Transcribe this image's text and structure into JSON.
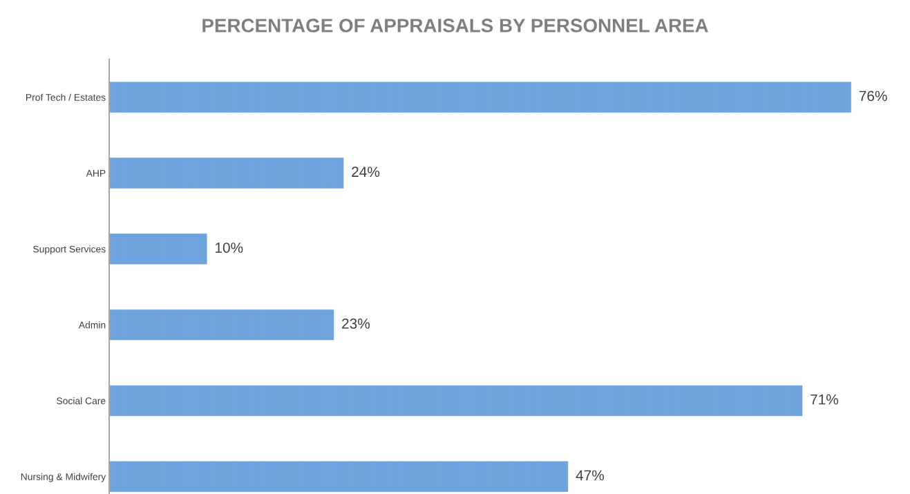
{
  "chart_data": {
    "type": "bar",
    "orientation": "horizontal",
    "title": "PERCENTAGE OF APPRAISALS BY PERSONNEL AREA",
    "categories": [
      "Prof Tech / Estates",
      "AHP",
      "Support Services",
      "Admin",
      "Social Care",
      "Nursing & Midwifery"
    ],
    "values": [
      76,
      24,
      10,
      23,
      71,
      47
    ],
    "value_labels": [
      "76%",
      "24%",
      "10%",
      "23%",
      "71%",
      "47%"
    ],
    "color": "#6fa3de",
    "grid": false,
    "legend": false,
    "tick_labels": "y"
  }
}
